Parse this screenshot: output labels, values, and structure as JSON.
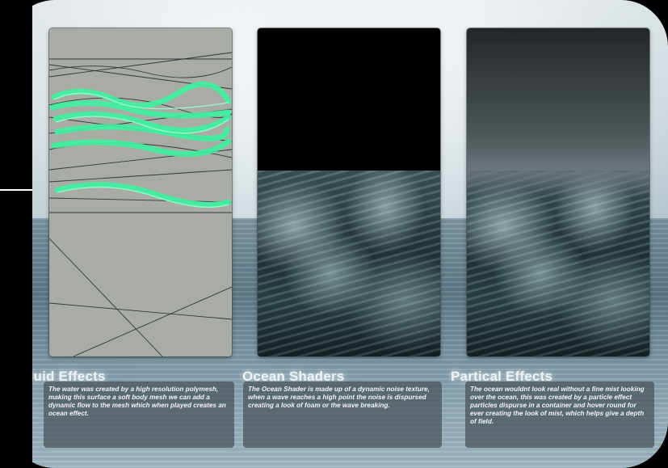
{
  "panels": [
    {
      "title": "Fluid Effects",
      "text": "The water was created by a high resolution polymesh, making this surface a soft body mesh we can add a dynamic flow to the mesh which when played creates an ocean effect."
    },
    {
      "title": "Ocean Shaders",
      "text": "The Ocean Shader is made up of a dynamic noise texture, when a wave reaches a high point the noise is dispursed creating a look of foam or the wave breaking."
    },
    {
      "title": "Partical Effects",
      "text": "The ocean wouldnt look real without a fine mist looking over the ocean, this was created by a particle effect particles dispurse in a container and hover round for ever creating the look of mist, which helps give a depth of field."
    }
  ],
  "colors": {
    "mesh_background": "#a9aba5",
    "mesh_wave": "#3df2a0",
    "sky_black": "#000000"
  }
}
